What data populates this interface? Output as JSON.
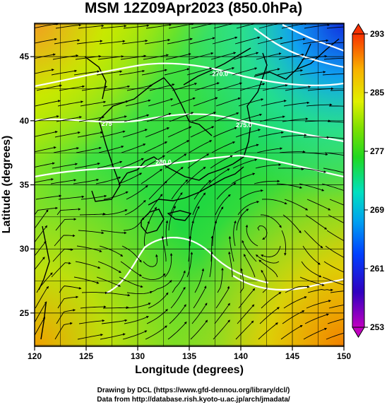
{
  "title": "MSM 12Z09Apr2023 (850.0hPa)",
  "xlabel": "Longitude (degrees)",
  "ylabel": "Latitude  (degrees)",
  "credit_line1": "Drawing by DCL (https://www.gfd-dennou.org/library/dcl/)",
  "credit_line2": "Data from http://database.rish.kyoto-u.ac.jp/arch/jmadata/",
  "chart_data": {
    "type": "heatmap",
    "xlim": [
      120,
      150
    ],
    "ylim": [
      22.4,
      47.6
    ],
    "x_ticks": [
      120,
      125,
      130,
      135,
      140,
      145,
      150
    ],
    "y_ticks": [
      25,
      30,
      35,
      40,
      45
    ],
    "colorbar": {
      "min": 253,
      "max": 293,
      "ticks": [
        293,
        285,
        277,
        269,
        261,
        253
      ],
      "colors": [
        "#c000c0",
        "#3000c0",
        "#0040ff",
        "#00b0f0",
        "#00e8b0",
        "#20d820",
        "#80e000",
        "#e0f000",
        "#f8b000",
        "#f83000"
      ]
    },
    "contour_labels": [
      {
        "text": "270.0",
        "lon": 138.0,
        "lat": 43.5
      },
      {
        "text": "275.0",
        "lon": 140.3,
        "lat": 39.5
      },
      {
        "text": "280.0",
        "lon": 132.5,
        "lat": 36.6
      },
      {
        "text": "275",
        "lon": 127.0,
        "lat": 39.6
      }
    ],
    "features": [
      "temperature shading",
      "streamlines (wind)",
      "white isotherms",
      "coastlines",
      "grid on"
    ]
  }
}
